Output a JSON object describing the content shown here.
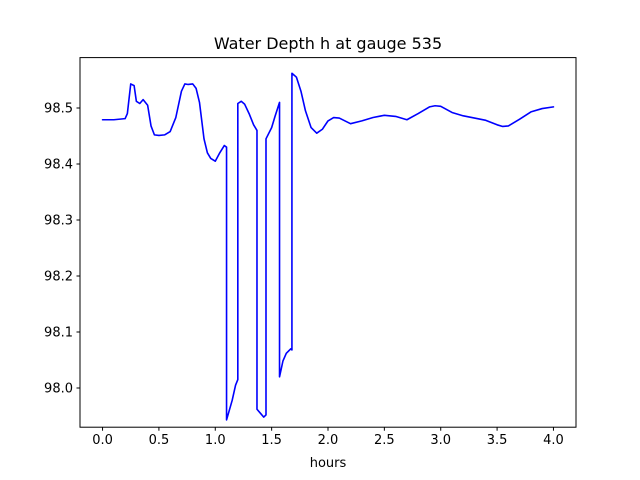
{
  "chart_data": {
    "type": "line",
    "title": "Water Depth h at gauge 535",
    "xlabel": "hours",
    "ylabel": "",
    "xlim": [
      -0.2,
      4.2
    ],
    "ylim": [
      97.93,
      98.59
    ],
    "xticks": [
      0.0,
      0.5,
      1.0,
      1.5,
      2.0,
      2.5,
      3.0,
      3.5,
      4.0
    ],
    "xtick_labels": [
      "0.0",
      "0.5",
      "1.0",
      "1.5",
      "2.0",
      "2.5",
      "3.0",
      "3.5",
      "4.0"
    ],
    "yticks": [
      98.0,
      98.1,
      98.2,
      98.3,
      98.4,
      98.5
    ],
    "ytick_labels": [
      "98.0",
      "98.1",
      "98.2",
      "98.3",
      "98.4",
      "98.5"
    ],
    "grid": false,
    "legend": "none",
    "series": [
      {
        "color": "#0000ff",
        "x": [
          0.0,
          0.1,
          0.2,
          0.22,
          0.25,
          0.28,
          0.3,
          0.33,
          0.36,
          0.4,
          0.43,
          0.46,
          0.5,
          0.55,
          0.6,
          0.65,
          0.7,
          0.73,
          0.76,
          0.8,
          0.83,
          0.86,
          0.9,
          0.93,
          0.96,
          1.0,
          1.04,
          1.08,
          1.1,
          1.1,
          1.15,
          1.18,
          1.2,
          1.2,
          1.23,
          1.26,
          1.3,
          1.34,
          1.37,
          1.37,
          1.4,
          1.43,
          1.45,
          1.45,
          1.5,
          1.53,
          1.57,
          1.57,
          1.6,
          1.63,
          1.67,
          1.68,
          1.68,
          1.72,
          1.76,
          1.8,
          1.85,
          1.9,
          1.95,
          2.0,
          2.05,
          2.1,
          2.2,
          2.3,
          2.4,
          2.5,
          2.6,
          2.7,
          2.8,
          2.9,
          2.95,
          3.0,
          3.1,
          3.2,
          3.3,
          3.4,
          3.5,
          3.55,
          3.6,
          3.7,
          3.8,
          3.9,
          4.0
        ],
        "y": [
          98.479,
          98.479,
          98.481,
          98.49,
          98.543,
          98.54,
          98.512,
          98.508,
          98.515,
          98.505,
          98.468,
          98.452,
          98.451,
          98.452,
          98.458,
          98.483,
          98.53,
          98.543,
          98.542,
          98.543,
          98.535,
          98.51,
          98.445,
          98.42,
          98.41,
          98.405,
          98.42,
          98.433,
          98.43,
          97.943,
          97.978,
          98.005,
          98.015,
          98.508,
          98.512,
          98.507,
          98.49,
          98.47,
          98.46,
          97.962,
          97.955,
          97.948,
          97.952,
          98.445,
          98.465,
          98.485,
          98.51,
          98.02,
          98.048,
          98.062,
          98.07,
          98.068,
          98.562,
          98.555,
          98.53,
          98.495,
          98.465,
          98.455,
          98.462,
          98.477,
          98.483,
          98.482,
          98.472,
          98.477,
          98.483,
          98.487,
          98.485,
          98.479,
          98.49,
          98.502,
          98.504,
          98.503,
          98.492,
          98.486,
          98.482,
          98.478,
          98.47,
          98.467,
          98.468,
          98.48,
          98.493,
          98.499,
          98.502
        ]
      }
    ]
  }
}
